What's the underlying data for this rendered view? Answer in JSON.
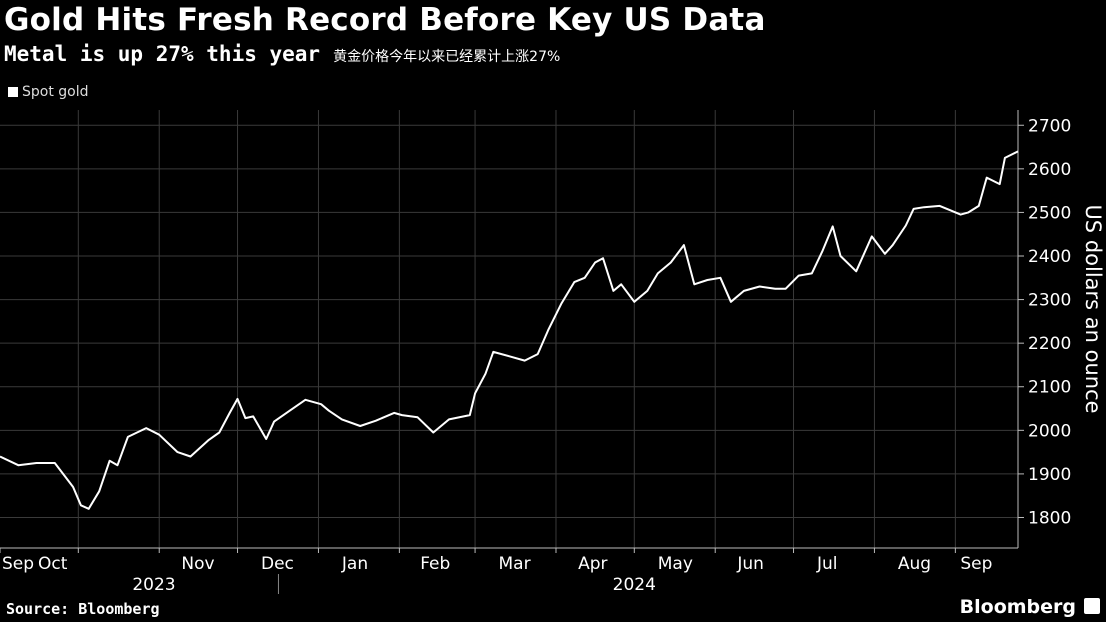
{
  "title": "Gold Hits Fresh Record Before Key US Data",
  "subtitle": "Metal is up 27% this year",
  "subtitle_cn": "黄金价格今年以来已经累计上涨27%",
  "legend_label": "Spot gold",
  "source": "Source: Bloomberg",
  "brand": "Bloomberg",
  "brand_icon": "bloomberg-chart-icon",
  "colors": {
    "background": "#000000",
    "line": "#ffffff",
    "grid": "#3a3a3a"
  },
  "chart_data": {
    "type": "line",
    "title": "Gold Hits Fresh Record Before Key US Data",
    "subtitle": "Metal is up 27% this year",
    "ylabel": "US dollars an ounce",
    "xlabel": "",
    "ylim": [
      1730,
      2735
    ],
    "yticks": [
      1800,
      1900,
      2000,
      2100,
      2200,
      2300,
      2400,
      2500,
      2600,
      2700
    ],
    "grid": true,
    "y_axis_side": "right",
    "legend_position": "top-left",
    "x_range": [
      "2023-09-01",
      "2024-09-25"
    ],
    "month_labels": [
      {
        "label": "Sep",
        "date": "2023-09-01"
      },
      {
        "label": "Oct",
        "date": "2023-10-01"
      },
      {
        "label": "Nov",
        "date": "2023-11-01"
      },
      {
        "label": "Dec",
        "date": "2023-12-01"
      },
      {
        "label": "Jan",
        "date": "2024-01-01"
      },
      {
        "label": "Feb",
        "date": "2024-02-01"
      },
      {
        "label": "Mar",
        "date": "2024-03-01"
      },
      {
        "label": "Apr",
        "date": "2024-04-01"
      },
      {
        "label": "May",
        "date": "2024-05-01"
      },
      {
        "label": "Jun",
        "date": "2024-06-01"
      },
      {
        "label": "Jul",
        "date": "2024-07-01"
      },
      {
        "label": "Aug",
        "date": "2024-08-01"
      },
      {
        "label": "Sep",
        "date": "2024-09-01"
      }
    ],
    "year_labels": [
      {
        "label": "2023",
        "date": "2023-10-30"
      },
      {
        "label": "2024",
        "date": "2024-05-01"
      }
    ],
    "year_divider_date": "2024-01-01",
    "series": [
      {
        "name": "Spot gold",
        "points": [
          [
            "2023-09-01",
            1940
          ],
          [
            "2023-09-08",
            1920
          ],
          [
            "2023-09-15",
            1925
          ],
          [
            "2023-09-22",
            1925
          ],
          [
            "2023-09-29",
            1870
          ],
          [
            "2023-10-02",
            1828
          ],
          [
            "2023-10-05",
            1820
          ],
          [
            "2023-10-09",
            1860
          ],
          [
            "2023-10-13",
            1930
          ],
          [
            "2023-10-16",
            1920
          ],
          [
            "2023-10-20",
            1985
          ],
          [
            "2023-10-27",
            2005
          ],
          [
            "2023-11-01",
            1990
          ],
          [
            "2023-11-08",
            1950
          ],
          [
            "2023-11-13",
            1940
          ],
          [
            "2023-11-20",
            1978
          ],
          [
            "2023-11-24",
            1995
          ],
          [
            "2023-11-28",
            2040
          ],
          [
            "2023-12-01",
            2072
          ],
          [
            "2023-12-04",
            2028
          ],
          [
            "2023-12-07",
            2032
          ],
          [
            "2023-12-12",
            1980
          ],
          [
            "2023-12-15",
            2020
          ],
          [
            "2023-12-21",
            2045
          ],
          [
            "2023-12-27",
            2070
          ],
          [
            "2024-01-02",
            2060
          ],
          [
            "2024-01-05",
            2045
          ],
          [
            "2024-01-10",
            2025
          ],
          [
            "2024-01-17",
            2010
          ],
          [
            "2024-01-23",
            2022
          ],
          [
            "2024-01-30",
            2040
          ],
          [
            "2024-02-02",
            2035
          ],
          [
            "2024-02-08",
            2030
          ],
          [
            "2024-02-14",
            1995
          ],
          [
            "2024-02-20",
            2025
          ],
          [
            "2024-02-28",
            2035
          ],
          [
            "2024-03-01",
            2085
          ],
          [
            "2024-03-05",
            2130
          ],
          [
            "2024-03-08",
            2180
          ],
          [
            "2024-03-14",
            2170
          ],
          [
            "2024-03-20",
            2160
          ],
          [
            "2024-03-25",
            2175
          ],
          [
            "2024-03-29",
            2230
          ],
          [
            "2024-04-03",
            2290
          ],
          [
            "2024-04-08",
            2340
          ],
          [
            "2024-04-12",
            2350
          ],
          [
            "2024-04-16",
            2385
          ],
          [
            "2024-04-19",
            2395
          ],
          [
            "2024-04-23",
            2320
          ],
          [
            "2024-04-26",
            2335
          ],
          [
            "2024-05-01",
            2295
          ],
          [
            "2024-05-06",
            2320
          ],
          [
            "2024-05-10",
            2360
          ],
          [
            "2024-05-15",
            2385
          ],
          [
            "2024-05-20",
            2425
          ],
          [
            "2024-05-24",
            2335
          ],
          [
            "2024-05-29",
            2345
          ],
          [
            "2024-06-03",
            2350
          ],
          [
            "2024-06-07",
            2295
          ],
          [
            "2024-06-12",
            2320
          ],
          [
            "2024-06-18",
            2330
          ],
          [
            "2024-06-24",
            2325
          ],
          [
            "2024-06-28",
            2325
          ],
          [
            "2024-07-03",
            2355
          ],
          [
            "2024-07-08",
            2360
          ],
          [
            "2024-07-12",
            2410
          ],
          [
            "2024-07-16",
            2468
          ],
          [
            "2024-07-19",
            2400
          ],
          [
            "2024-07-25",
            2365
          ],
          [
            "2024-07-31",
            2445
          ],
          [
            "2024-08-05",
            2405
          ],
          [
            "2024-08-08",
            2425
          ],
          [
            "2024-08-13",
            2470
          ],
          [
            "2024-08-16",
            2508
          ],
          [
            "2024-08-20",
            2512
          ],
          [
            "2024-08-26",
            2515
          ],
          [
            "2024-08-30",
            2505
          ],
          [
            "2024-09-03",
            2495
          ],
          [
            "2024-09-06",
            2500
          ],
          [
            "2024-09-10",
            2515
          ],
          [
            "2024-09-13",
            2580
          ],
          [
            "2024-09-18",
            2565
          ],
          [
            "2024-09-20",
            2625
          ],
          [
            "2024-09-25",
            2640
          ]
        ]
      }
    ]
  }
}
